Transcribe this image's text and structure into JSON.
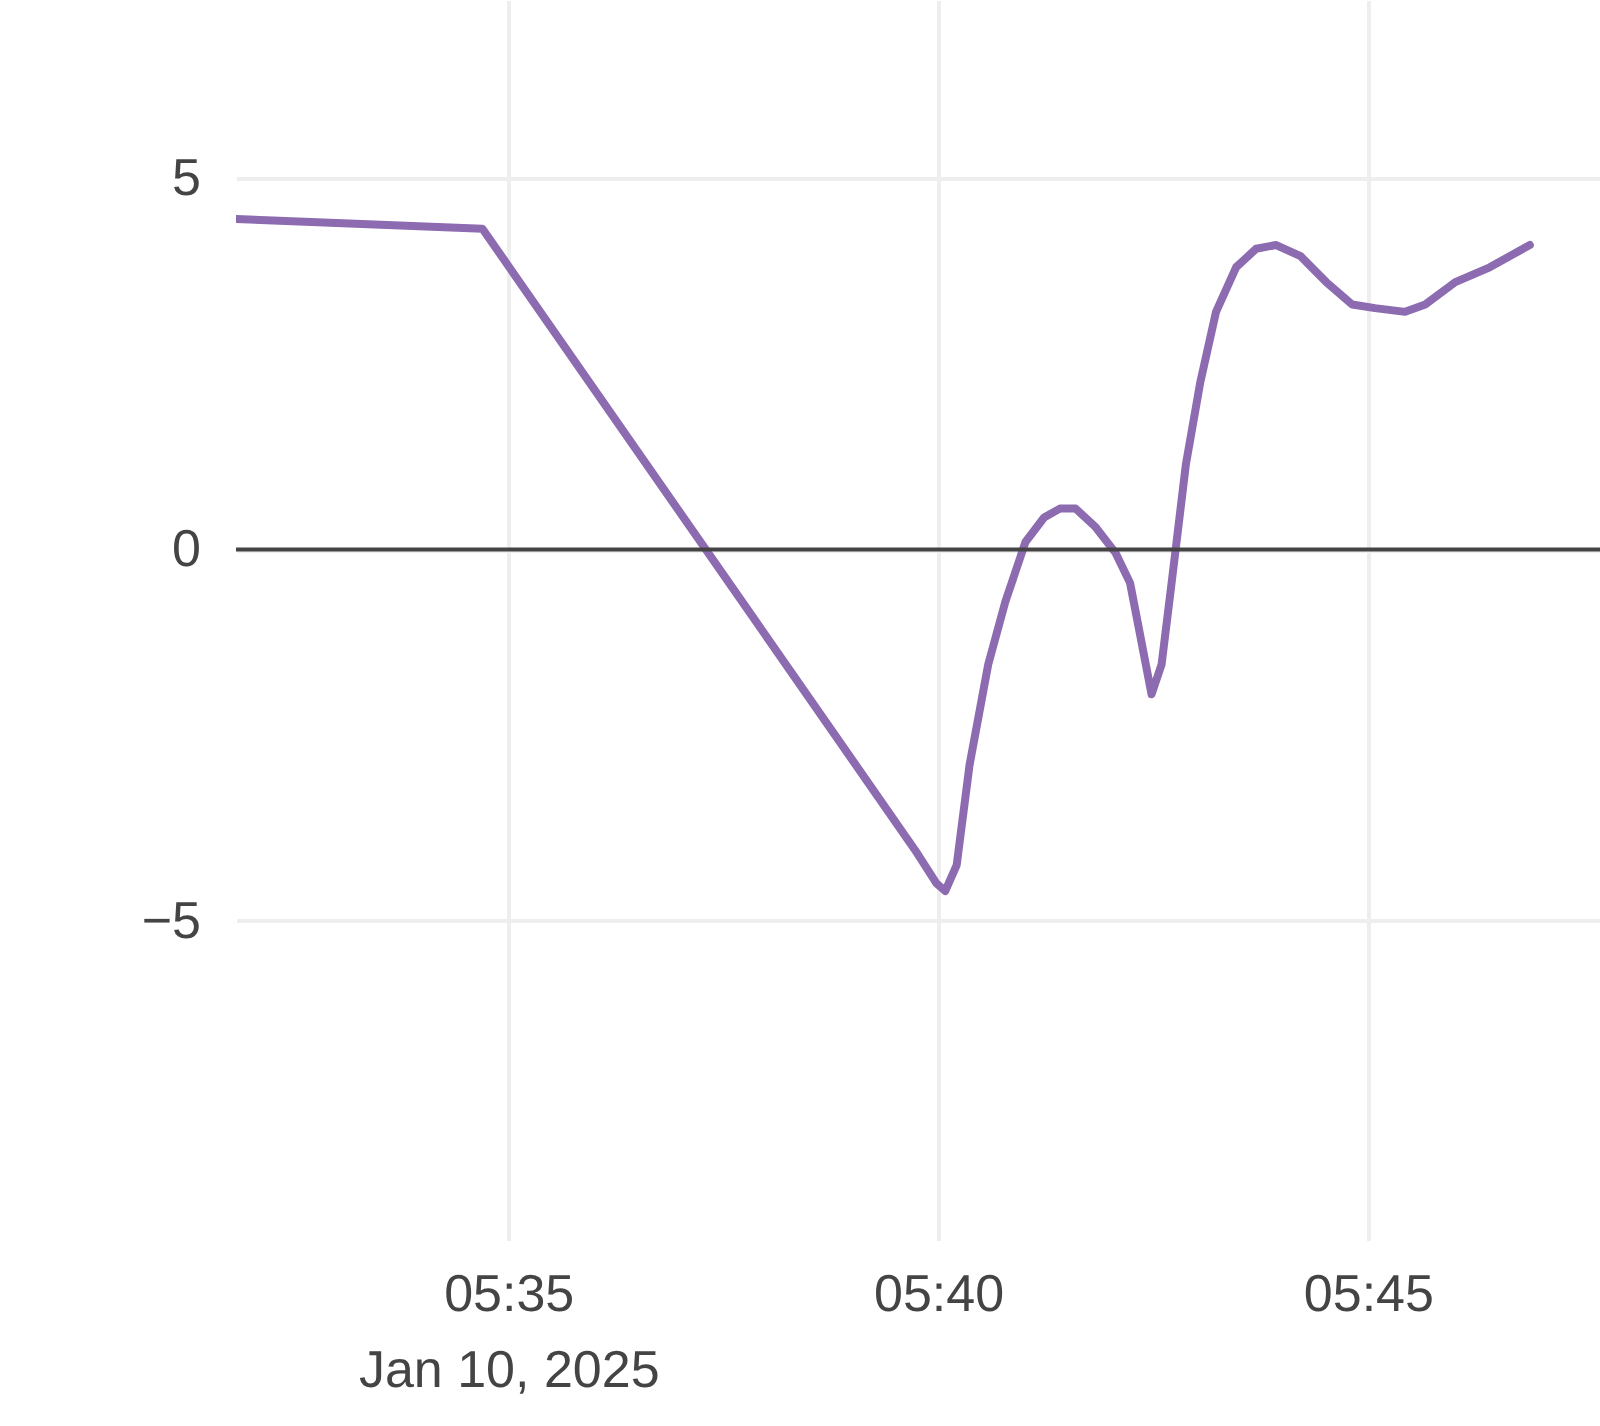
{
  "chart_data": {
    "type": "line",
    "x": [
      "2025-01-10T05:31:50",
      "2025-01-10T05:34:42",
      "2025-01-10T05:39:44",
      "2025-01-10T05:39:59",
      "2025-01-10T05:40:05",
      "2025-01-10T05:40:13",
      "2025-01-10T05:40:22",
      "2025-01-10T05:40:35",
      "2025-01-10T05:40:47",
      "2025-01-10T05:41:01",
      "2025-01-10T05:41:14",
      "2025-01-10T05:41:25",
      "2025-01-10T05:41:36",
      "2025-01-10T05:41:50",
      "2025-01-10T05:42:04",
      "2025-01-10T05:42:14",
      "2025-01-10T05:42:21",
      "2025-01-10T05:42:29",
      "2025-01-10T05:42:36",
      "2025-01-10T05:42:43",
      "2025-01-10T05:42:53",
      "2025-01-10T05:43:03",
      "2025-01-10T05:43:14",
      "2025-01-10T05:43:28",
      "2025-01-10T05:43:42",
      "2025-01-10T05:43:56",
      "2025-01-10T05:44:13",
      "2025-01-10T05:44:31",
      "2025-01-10T05:44:49",
      "2025-01-10T05:45:05",
      "2025-01-10T05:45:26",
      "2025-01-10T05:45:40",
      "2025-01-10T05:46:01",
      "2025-01-10T05:46:25",
      "2025-01-10T05:46:53"
    ],
    "series": [
      {
        "color": "#8c6bb1",
        "values": [
          4.45,
          4.32,
          -4.05,
          -4.5,
          -4.6,
          -4.25,
          -2.9,
          -1.55,
          -0.7,
          0.1,
          0.43,
          0.55,
          0.55,
          0.3,
          -0.05,
          -0.45,
          -1.15,
          -1.95,
          -1.55,
          -0.45,
          1.15,
          2.25,
          3.2,
          3.8,
          4.05,
          4.1,
          3.95,
          3.6,
          3.3,
          3.25,
          3.2,
          3.3,
          3.6,
          3.8,
          4.1
        ]
      }
    ],
    "xlim": [
      "2025-01-10T05:31:50",
      "2025-01-10T05:48:49"
    ],
    "xticks": [
      {
        "value": "2025-01-10T05:35",
        "label": "05:35\nJan 10, 2025"
      },
      {
        "value": "2025-01-10T05:40",
        "label": "05:40"
      },
      {
        "value": "2025-01-10T05:45",
        "label": "05:45"
      }
    ],
    "ylim": [
      -9.3,
      7.4
    ],
    "yticks": [
      -5,
      0,
      5
    ],
    "ref_lines": [
      {
        "axis": "y",
        "value": 0,
        "color": "#444444"
      }
    ],
    "grid": true,
    "line_style": "solid",
    "marker": "none"
  }
}
